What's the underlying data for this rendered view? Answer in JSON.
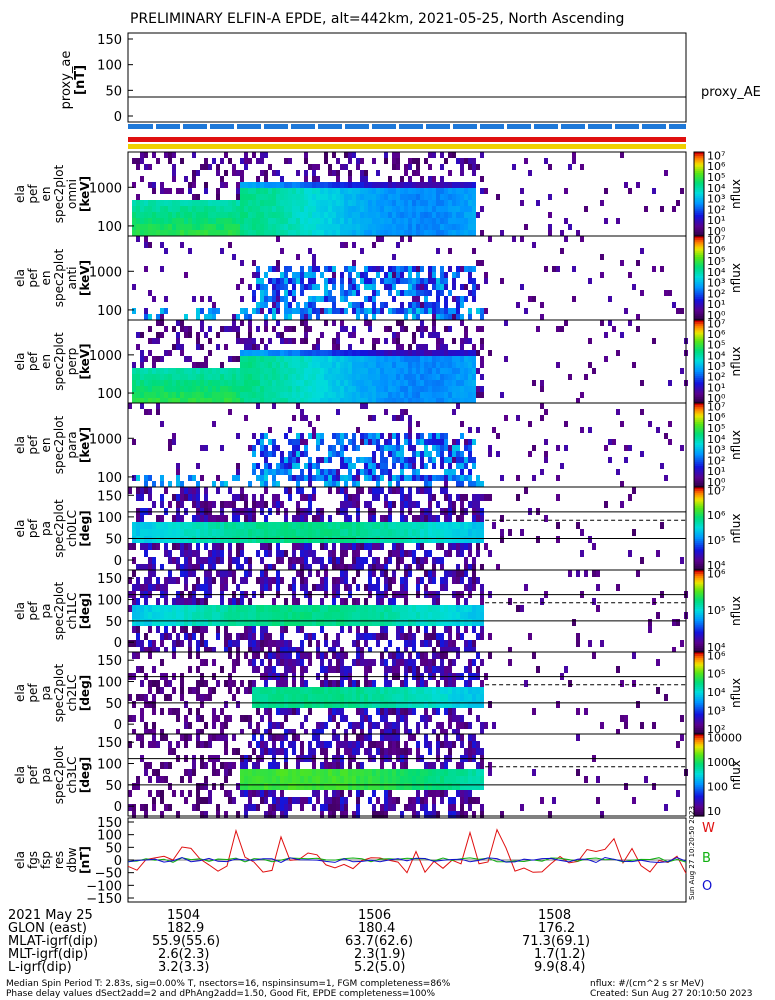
{
  "title": "PRELIMINARY ELFIN-A EPDE, alt=442km, 2021-05-25, North Ascending",
  "proxy": {
    "ylabel": [
      "proxy_ae",
      "[nT]"
    ],
    "yticks": [
      "150",
      "100",
      "50",
      "0"
    ],
    "legend": "proxy_AE",
    "value": 37
  },
  "state_bars": {
    "colors": [
      "#1e78d8",
      "#e01010",
      "#f0d000"
    ]
  },
  "panels": [
    {
      "ylabel": [
        "ela",
        "pef",
        "en",
        "spec2plot",
        "omni",
        "[keV]"
      ],
      "yticks": [
        "1000",
        "100"
      ],
      "cbar_ticks": [
        "10⁷",
        "10⁶",
        "10⁵",
        "10⁴",
        "10³",
        "10²",
        "10¹",
        "10⁰"
      ],
      "cbar_label": "nflux"
    },
    {
      "ylabel": [
        "ela",
        "pef",
        "en",
        "spec2plot",
        "anti",
        "[keV]"
      ],
      "yticks": [
        "1000",
        "100"
      ],
      "cbar_ticks": [
        "10⁷",
        "10⁶",
        "10⁵",
        "10⁴",
        "10³",
        "10²",
        "10¹",
        "10⁰"
      ],
      "cbar_label": "nflux"
    },
    {
      "ylabel": [
        "ela",
        "pef",
        "en",
        "spec2plot",
        "perp",
        "[keV]"
      ],
      "yticks": [
        "1000",
        "100"
      ],
      "cbar_ticks": [
        "10⁷",
        "10⁶",
        "10⁵",
        "10⁴",
        "10³",
        "10²",
        "10¹",
        "10⁰"
      ],
      "cbar_label": "nflux"
    },
    {
      "ylabel": [
        "ela",
        "pef",
        "en",
        "spec2plot",
        "para",
        "[keV]"
      ],
      "yticks": [
        "1000",
        "100"
      ],
      "cbar_ticks": [
        "10⁷",
        "10⁶",
        "10⁵",
        "10⁴",
        "10³",
        "10²",
        "10¹",
        "10⁰"
      ],
      "cbar_label": "nflux"
    },
    {
      "ylabel": [
        "ela",
        "pef",
        "pa",
        "spec2plot",
        "ch0LC",
        "[deg]"
      ],
      "yticks": [
        "150",
        "100",
        "50",
        "0"
      ],
      "cbar_ticks": [
        "10⁷",
        "10⁶",
        "10⁵",
        "10⁴"
      ],
      "cbar_label": "nflux"
    },
    {
      "ylabel": [
        "ela",
        "pef",
        "pa",
        "spec2plot",
        "ch1LC",
        "[deg]"
      ],
      "yticks": [
        "150",
        "100",
        "50",
        "0"
      ],
      "cbar_ticks": [
        "10⁶",
        "10⁵",
        "10⁴"
      ],
      "cbar_label": "nflux"
    },
    {
      "ylabel": [
        "ela",
        "pef",
        "pa",
        "spec2plot",
        "ch2LC",
        "[deg]"
      ],
      "yticks": [
        "150",
        "100",
        "50",
        "0"
      ],
      "cbar_ticks": [
        "10⁶",
        "10⁵",
        "10⁴",
        "10³",
        "10²"
      ],
      "cbar_label": "nflux"
    },
    {
      "ylabel": [
        "ela",
        "pef",
        "pa",
        "spec2plot",
        "ch3LC",
        "[deg]"
      ],
      "yticks": [
        "150",
        "100",
        "50",
        "0"
      ],
      "cbar_ticks": [
        "10000",
        "1000",
        "100",
        "10"
      ],
      "cbar_label": "nflux"
    }
  ],
  "fgm": {
    "ylabel": [
      "ela",
      "fgs",
      "fsp",
      "res",
      "dbw",
      "[nT]"
    ],
    "yticks": [
      "150",
      "100",
      "50",
      "0",
      "−50",
      "−100",
      "−150"
    ],
    "legend": [
      "W",
      "B",
      "O"
    ],
    "legend_colors": [
      "#e01010",
      "#10b010",
      "#1010d0"
    ],
    "side_text": "Sun Aug 27 10:20:50 2023"
  },
  "axis": {
    "rows": [
      {
        "label": "2021 May 25",
        "values": [
          "1504",
          "1506",
          "1508"
        ]
      },
      {
        "label": "GLON (east)",
        "values": [
          "182.9",
          "180.4",
          "176.2"
        ]
      },
      {
        "label": "MLAT-igrf(dip)",
        "values": [
          "55.9(55.6)",
          "63.7(62.6)",
          "71.3(69.1)"
        ]
      },
      {
        "label": "MLT-igrf(dip)",
        "values": [
          "2.6(2.3)",
          "2.3(1.9)",
          "1.7(1.2)"
        ]
      },
      {
        "label": "L-igrf(dip)",
        "values": [
          "3.2(3.3)",
          "5.2(5.0)",
          "9.9(8.4)"
        ]
      }
    ]
  },
  "footer": {
    "line1": "Median Spin Period T: 2.83s, sig=0.00% T, nsectors=16, nspinsinsum=1, FGM completeness=86%",
    "line2": "Phase delay values dSect2add=2 and dPhAng2add=1.50, Good Fit, EPDE completeness=100%",
    "right1": "nflux: #/(cm^2 s sr MeV)",
    "right2": "Created: Sun Aug 27 20:10:50 2023"
  }
}
